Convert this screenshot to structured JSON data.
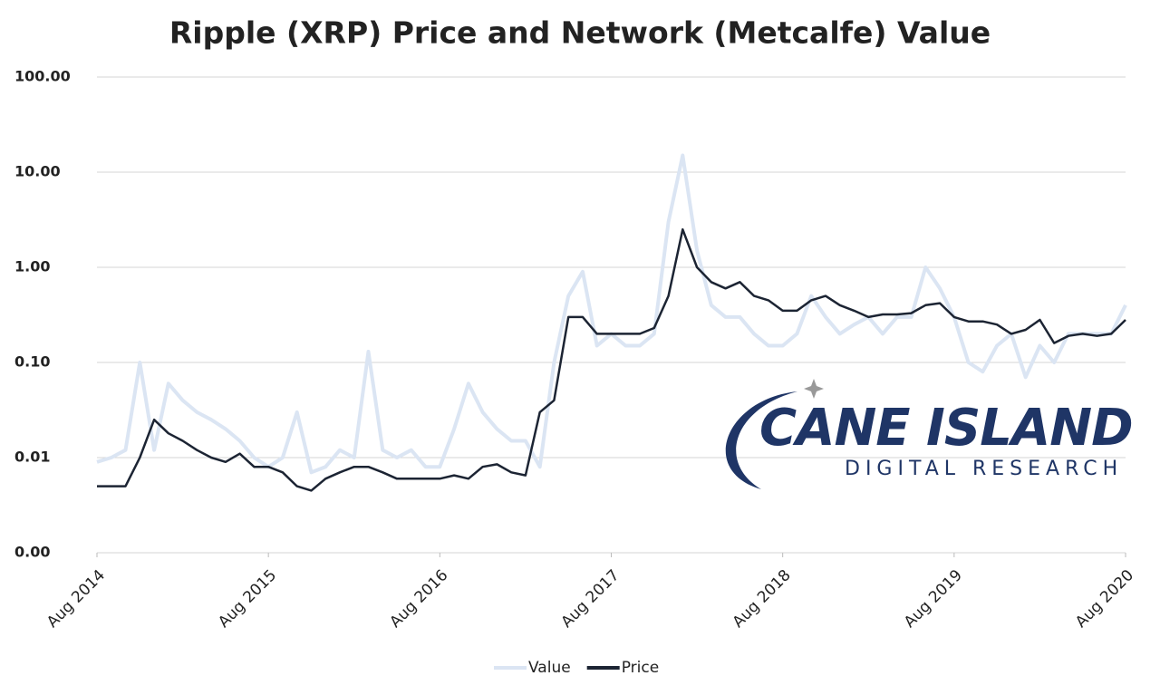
{
  "chart_data": {
    "type": "line",
    "title": "Ripple (XRP) Price and Network (Metcalfe) Value",
    "x": [
      "2014-08",
      "2014-09",
      "2014-10",
      "2014-11",
      "2014-12",
      "2015-01",
      "2015-02",
      "2015-03",
      "2015-04",
      "2015-05",
      "2015-06",
      "2015-07",
      "2015-08",
      "2015-09",
      "2015-10",
      "2015-11",
      "2015-12",
      "2016-01",
      "2016-02",
      "2016-03",
      "2016-04",
      "2016-05",
      "2016-06",
      "2016-07",
      "2016-08",
      "2016-09",
      "2016-10",
      "2016-11",
      "2016-12",
      "2017-01",
      "2017-02",
      "2017-03",
      "2017-04",
      "2017-05",
      "2017-06",
      "2017-07",
      "2017-08",
      "2017-09",
      "2017-10",
      "2017-11",
      "2017-12",
      "2018-01",
      "2018-02",
      "2018-03",
      "2018-04",
      "2018-05",
      "2018-06",
      "2018-07",
      "2018-08",
      "2018-09",
      "2018-10",
      "2018-11",
      "2018-12",
      "2019-01",
      "2019-02",
      "2019-03",
      "2019-04",
      "2019-05",
      "2019-06",
      "2019-07",
      "2019-08",
      "2019-09",
      "2019-10",
      "2019-11",
      "2019-12",
      "2020-01",
      "2020-02",
      "2020-03",
      "2020-04",
      "2020-05",
      "2020-06",
      "2020-07",
      "2020-08"
    ],
    "series": [
      {
        "name": "Value",
        "color": "#dbe5f3",
        "values": [
          0.009,
          0.01,
          0.012,
          0.1,
          0.012,
          0.06,
          0.04,
          0.03,
          0.025,
          0.02,
          0.015,
          0.01,
          0.008,
          0.01,
          0.03,
          0.007,
          0.008,
          0.012,
          0.01,
          0.13,
          0.012,
          0.01,
          0.012,
          0.008,
          0.008,
          0.02,
          0.06,
          0.03,
          0.02,
          0.015,
          0.015,
          0.008,
          0.1,
          0.5,
          0.9,
          0.15,
          0.2,
          0.15,
          0.15,
          0.2,
          3.0,
          15,
          1.5,
          0.4,
          0.3,
          0.3,
          0.2,
          0.15,
          0.15,
          0.2,
          0.5,
          0.3,
          0.2,
          0.25,
          0.3,
          0.2,
          0.3,
          0.3,
          1.0,
          0.6,
          0.3,
          0.1,
          0.08,
          0.15,
          0.2,
          0.07,
          0.15,
          0.1,
          0.2,
          0.2,
          0.2,
          0.2,
          0.4
        ]
      },
      {
        "name": "Price",
        "color": "#1c2433",
        "values": [
          0.005,
          0.005,
          0.005,
          0.01,
          0.025,
          0.018,
          0.015,
          0.012,
          0.01,
          0.009,
          0.011,
          0.008,
          0.008,
          0.007,
          0.005,
          0.0045,
          0.006,
          0.007,
          0.008,
          0.008,
          0.007,
          0.006,
          0.006,
          0.006,
          0.006,
          0.0065,
          0.006,
          0.008,
          0.0085,
          0.007,
          0.0065,
          0.03,
          0.04,
          0.3,
          0.3,
          0.2,
          0.2,
          0.2,
          0.2,
          0.23,
          0.5,
          2.5,
          1.0,
          0.7,
          0.6,
          0.7,
          0.5,
          0.45,
          0.35,
          0.35,
          0.45,
          0.5,
          0.4,
          0.35,
          0.3,
          0.32,
          0.32,
          0.33,
          0.4,
          0.42,
          0.3,
          0.27,
          0.27,
          0.25,
          0.2,
          0.22,
          0.28,
          0.16,
          0.19,
          0.2,
          0.19,
          0.2,
          0.28
        ]
      }
    ],
    "xlim": [
      "2014-08",
      "2020-08"
    ],
    "xticks": [
      {
        "value": "2014-08",
        "label": "Aug 2014"
      },
      {
        "value": "2015-08",
        "label": "Aug 2015"
      },
      {
        "value": "2016-08",
        "label": "Aug 2016"
      },
      {
        "value": "2017-08",
        "label": "Aug 2017"
      },
      {
        "value": "2018-08",
        "label": "Aug 2018"
      },
      {
        "value": "2019-08",
        "label": "Aug 2019"
      },
      {
        "value": "2020-08",
        "label": "Aug 2020"
      }
    ],
    "ylim": [
      0.001,
      100
    ],
    "yticks": [
      {
        "value": 0.001,
        "label": "0.00"
      },
      0.01,
      {
        "value": 0.1,
        "label": "0.10"
      },
      {
        "value": 1,
        "label": "1.00"
      },
      {
        "value": 10,
        "label": "10.00"
      },
      {
        "value": 100,
        "label": "100.00"
      }
    ],
    "ylog": true,
    "grid": true,
    "legend": "bottom",
    "watermark": [
      "CANE ISLAND",
      "DIGITAL RESEARCH"
    ]
  }
}
